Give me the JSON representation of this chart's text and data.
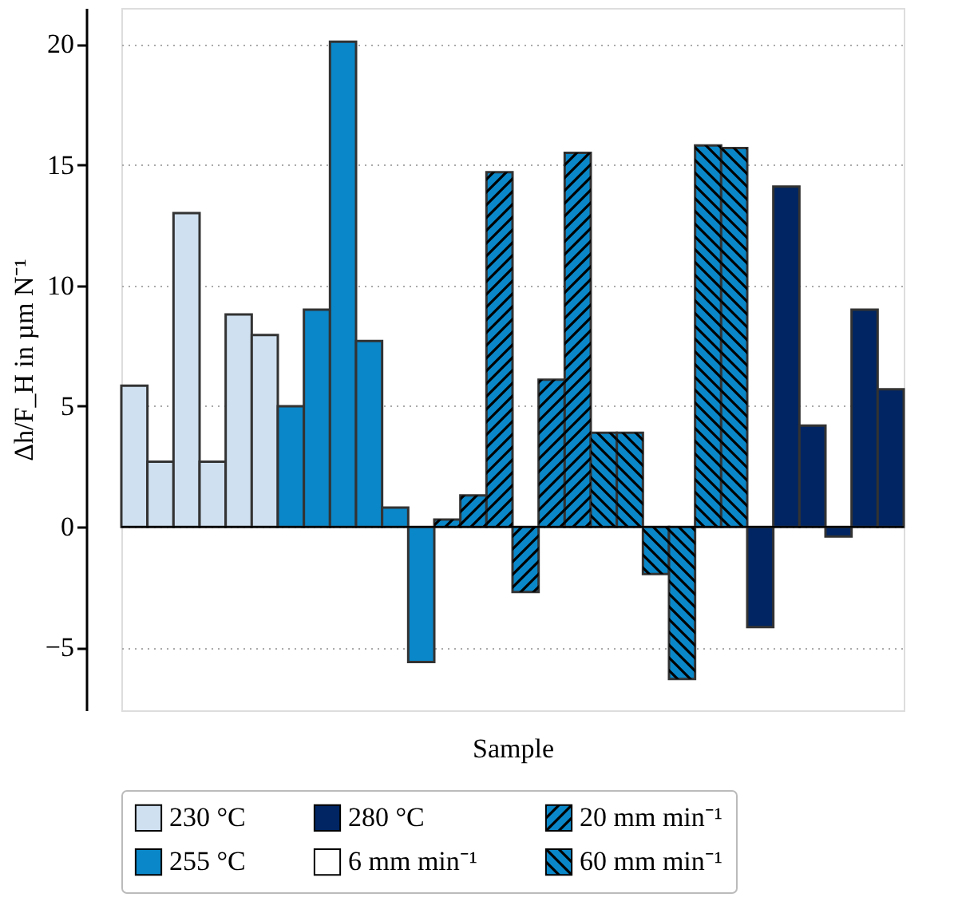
{
  "chart_data": {
    "type": "bar",
    "xlabel": "Sample",
    "ylabel": "Δh/F_H in µm N⁻¹",
    "categories": [
      null,
      null,
      null,
      null,
      null,
      null,
      null,
      null,
      null,
      null,
      null,
      null,
      null,
      null,
      null,
      null,
      null,
      null,
      null,
      null,
      null,
      null,
      null,
      null,
      null,
      null,
      null,
      null,
      null,
      null
    ],
    "series": [
      {
        "name": "230 °C",
        "color": "#cfe0f0",
        "values": [
          5.85,
          2.7,
          13.0,
          2.7,
          8.8,
          7.95,
          null,
          null,
          null,
          null,
          null,
          null,
          null,
          null,
          null,
          null,
          null,
          null,
          null,
          null,
          null,
          null,
          null,
          null,
          null,
          null,
          null,
          null,
          null,
          null
        ]
      },
      {
        "name": "255 °C",
        "color": "#0a87c8",
        "values": [
          null,
          null,
          null,
          null,
          null,
          null,
          5.0,
          9.0,
          20.1,
          7.7,
          0.8,
          -5.6,
          null,
          null,
          null,
          null,
          null,
          null,
          null,
          null,
          null,
          null,
          null,
          null,
          null,
          null,
          null,
          null,
          null,
          null
        ]
      },
      {
        "name": "280 °C",
        "color": "#002562",
        "values": [
          null,
          null,
          null,
          null,
          null,
          null,
          null,
          null,
          null,
          null,
          null,
          null,
          null,
          null,
          null,
          null,
          null,
          null,
          null,
          null,
          null,
          null,
          null,
          null,
          -4.15,
          14.1,
          4.2,
          -0.4,
          9.0,
          5.7
        ]
      },
      {
        "name": "6 mm min⁻¹",
        "color": "#ffffff",
        "values": [
          null,
          null,
          null,
          null,
          null,
          null,
          null,
          null,
          null,
          null,
          null,
          null,
          null,
          null,
          null,
          null,
          null,
          null,
          null,
          null,
          null,
          null,
          null,
          null,
          null,
          null,
          null,
          null,
          null,
          null
        ]
      },
      {
        "name": "20 mm min⁻¹",
        "color": "#0a87c8",
        "values": [
          null,
          null,
          null,
          null,
          null,
          null,
          null,
          null,
          null,
          null,
          null,
          null,
          0.3,
          1.3,
          14.7,
          -2.7,
          6.1,
          15.5,
          null,
          null,
          null,
          null,
          null,
          null,
          null,
          null,
          null,
          null,
          null,
          null
        ]
      },
      {
        "name": "60 mm min⁻¹",
        "color": "#0a87c8",
        "values": [
          null,
          null,
          null,
          null,
          null,
          null,
          null,
          null,
          null,
          null,
          null,
          null,
          null,
          null,
          null,
          null,
          null,
          null,
          3.9,
          3.9,
          -1.95,
          -6.3,
          15.8,
          15.7,
          null,
          null,
          null,
          null,
          null,
          null
        ]
      }
    ],
    "ylim": [
      -7.6,
      21.5
    ],
    "yticks": [
      -5,
      0,
      5,
      10,
      15,
      20
    ],
    "grid": "y",
    "legend": "bottom",
    "ref_lines": [
      {
        "axis": "y",
        "value": 0,
        "label": null,
        "color": "#000000"
      }
    ]
  }
}
